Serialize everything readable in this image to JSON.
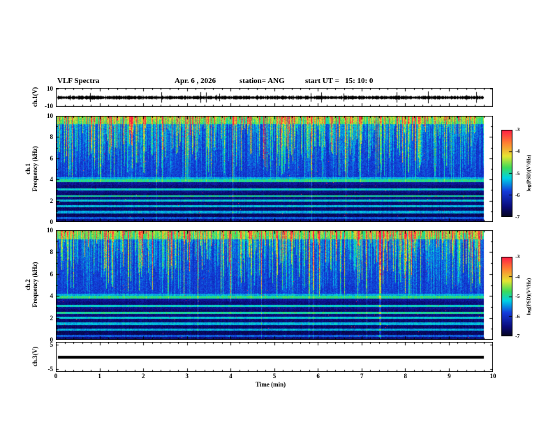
{
  "header": {
    "title": "VLF Spectra",
    "date": "Apr. 6 , 2026",
    "station": "station= ANG",
    "start_ut": "start UT =   15: 10: 0"
  },
  "axes": {
    "x": {
      "label": "Time (min)",
      "ticks": [
        "0",
        "1",
        "2",
        "3",
        "4",
        "5",
        "6",
        "7",
        "8",
        "9",
        "10"
      ],
      "range": [
        0,
        10
      ]
    },
    "wave": {
      "label": "ch.1(V)",
      "ticks": [
        "10",
        "-10"
      ],
      "range": [
        -10,
        10
      ]
    },
    "spec1": {
      "line1": "ch.1",
      "line2": "Frequency (kHz)",
      "ticks": [
        "0",
        "2",
        "4",
        "6",
        "8",
        "10"
      ],
      "range": [
        0,
        10
      ]
    },
    "spec2": {
      "line1": "ch.2",
      "line2": "Frequency (kHz)",
      "ticks": [
        "0",
        "2",
        "4",
        "6",
        "8",
        "10"
      ],
      "range": [
        0,
        10
      ]
    },
    "ch3": {
      "label": "ch.3(V)",
      "ticks": [
        "5",
        "-5"
      ],
      "range": [
        -6.25,
        6.25
      ]
    }
  },
  "colorbar": {
    "label": "log(PSD)(V²/Hz)",
    "ticks": [
      "-3",
      "-4",
      "-5",
      "-6",
      "-7"
    ],
    "range": [
      -3,
      -7
    ]
  },
  "chart_data": [
    {
      "type": "line",
      "name": "ch.1 time series",
      "ylabel": "ch.1(V)",
      "xlabel": "Time (min)",
      "xlim": [
        0,
        10
      ],
      "ylim": [
        -10,
        10
      ],
      "x_extent": [
        0,
        9.8
      ],
      "description": "Dense broadband noise trace centered on 0 V, amplitude mostly within about ±2 V with frequent impulsive spikes reaching roughly ±8 V across the whole record."
    },
    {
      "type": "heatmap",
      "name": "ch.1 spectrogram",
      "ylabel": "Frequency (kHz)",
      "xlabel": "Time (min)",
      "xlim": [
        0,
        10
      ],
      "ylim": [
        0,
        10
      ],
      "x_extent": [
        0,
        9.8
      ],
      "colorbar": {
        "label": "log(PSD)(V²/Hz)",
        "range": [
          -7,
          -3
        ]
      },
      "description": "VLF spectrogram: blue background (~ -6) above 4 kHz crossed by dense vertical sferic streaks (green/yellow, ~ -5 to -4) that are strongest near the top; enhanced green band near 9-10 kHz; below 4 kHz horizontal banding with nearly black gaps (~ -7) and bright green/cyan lines near about 0.9, 1.5, 2.0, 2.45, 3.1 and 3.9 kHz; occasional red specks near -3."
    },
    {
      "type": "heatmap",
      "name": "ch.2 spectrogram",
      "ylabel": "Frequency (kHz)",
      "xlabel": "Time (min)",
      "xlim": [
        0,
        10
      ],
      "ylim": [
        0,
        10
      ],
      "x_extent": [
        0,
        9.8
      ],
      "colorbar": {
        "label": "log(PSD)(V²/Hz)",
        "range": [
          -7,
          -3
        ]
      },
      "description": "Same structure as ch.1 spectrogram: blue background with vertical sferic streaks above 4 kHz, green band near 9-10 kHz, dark horizontal bands with bright narrow lines below 4 kHz, and a prominent bright full-height column near 7.5 min."
    },
    {
      "type": "line",
      "name": "ch.3 time series",
      "ylabel": "ch.3(V)",
      "xlabel": "Time (min)",
      "xlim": [
        0,
        10
      ],
      "ylim": [
        -6.25,
        6.25
      ],
      "x_extent": [
        0,
        9.8
      ],
      "description": "Constant flat trace at 0 V drawn as a thick black line for the whole record."
    }
  ]
}
